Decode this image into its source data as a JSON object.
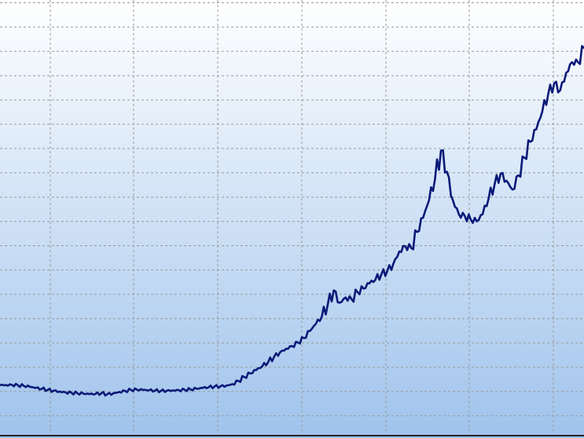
{
  "chart_data": {
    "type": "line",
    "title": "",
    "xlabel": "",
    "ylabel": "",
    "grid": true,
    "legend": "none",
    "x_index": [
      0,
      1,
      2,
      3,
      4,
      5,
      6,
      7,
      8,
      9,
      10,
      11,
      12,
      13,
      14,
      15,
      16,
      17,
      18,
      19,
      20,
      21,
      22,
      23,
      24,
      25,
      26,
      27,
      28,
      29,
      30,
      31,
      32,
      33,
      34,
      35,
      36,
      37,
      38,
      39,
      40,
      41,
      42,
      43,
      44,
      45,
      46,
      47,
      48,
      49,
      50,
      51,
      52,
      53,
      54,
      55,
      56,
      57,
      58,
      59,
      60,
      61,
      62,
      63,
      64,
      65,
      66,
      67,
      68,
      69,
      70,
      71,
      72,
      73,
      74,
      75,
      76,
      77,
      78,
      79,
      80,
      81,
      82,
      83,
      84,
      85,
      86,
      87,
      88,
      89,
      90,
      91,
      92,
      93,
      94,
      95,
      96,
      97,
      98
    ],
    "series": [
      {
        "values": [
          1.55,
          1.55,
          1.56,
          1.54,
          1.5,
          1.45,
          1.38,
          1.33,
          1.28,
          1.23,
          1.18,
          1.14,
          1.11,
          1.08,
          1.06,
          1.03,
          1.04,
          1.08,
          1.03,
          1.08,
          1.16,
          1.22,
          1.27,
          1.28,
          1.27,
          1.25,
          1.23,
          1.22,
          1.23,
          1.25,
          1.26,
          1.28,
          1.3,
          1.34,
          1.38,
          1.42,
          1.46,
          1.48,
          1.52,
          1.6,
          1.78,
          2.0,
          2.2,
          2.4,
          2.6,
          2.85,
          3.15,
          3.4,
          3.6,
          3.75,
          3.95,
          4.2,
          4.6,
          5.0,
          5.4,
          6.1,
          6.9,
          6.2,
          6.5,
          6.4,
          6.8,
          7.0,
          7.3,
          7.5,
          7.8,
          8.0,
          8.4,
          9.1,
          9.4,
          9.3,
          10.2,
          11.0,
          12.0,
          13.2,
          14.8,
          13.6,
          12.0,
          11.2,
          11.1,
          10.9,
          10.8,
          11.2,
          12.1,
          12.9,
          13.5,
          13.1,
          12.6,
          13.4,
          14.4,
          15.3,
          16.0,
          17.0,
          18.0,
          18.6,
          18.2,
          19.2,
          19.8,
          19.8,
          20.6
        ]
      }
    ]
  }
}
